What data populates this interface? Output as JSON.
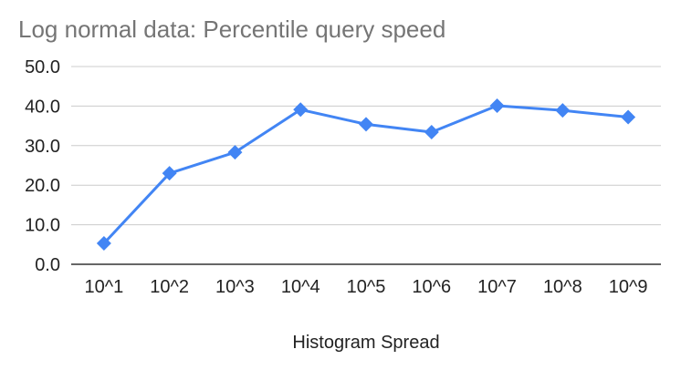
{
  "chart_data": {
    "type": "line",
    "title": "Log normal data: Percentile query speed",
    "xlabel": "Histogram Spread",
    "ylabel": "",
    "categories": [
      "10^1",
      "10^2",
      "10^3",
      "10^4",
      "10^5",
      "10^6",
      "10^7",
      "10^8",
      "10^9"
    ],
    "series": [
      {
        "values": [
          5.3,
          23.0,
          28.3,
          39.1,
          35.4,
          33.4,
          40.1,
          38.9,
          37.2
        ],
        "color": "#4285f4",
        "marker": "diamond"
      }
    ],
    "ylim": [
      0,
      50
    ],
    "yticks": [
      "0.0",
      "10.0",
      "20.0",
      "30.0",
      "40.0",
      "50.0"
    ],
    "grid": true,
    "legend": "none",
    "colors": {
      "gridline": "#cccccc",
      "baseline": "#333333",
      "title": "#757575",
      "text": "#222222"
    }
  }
}
